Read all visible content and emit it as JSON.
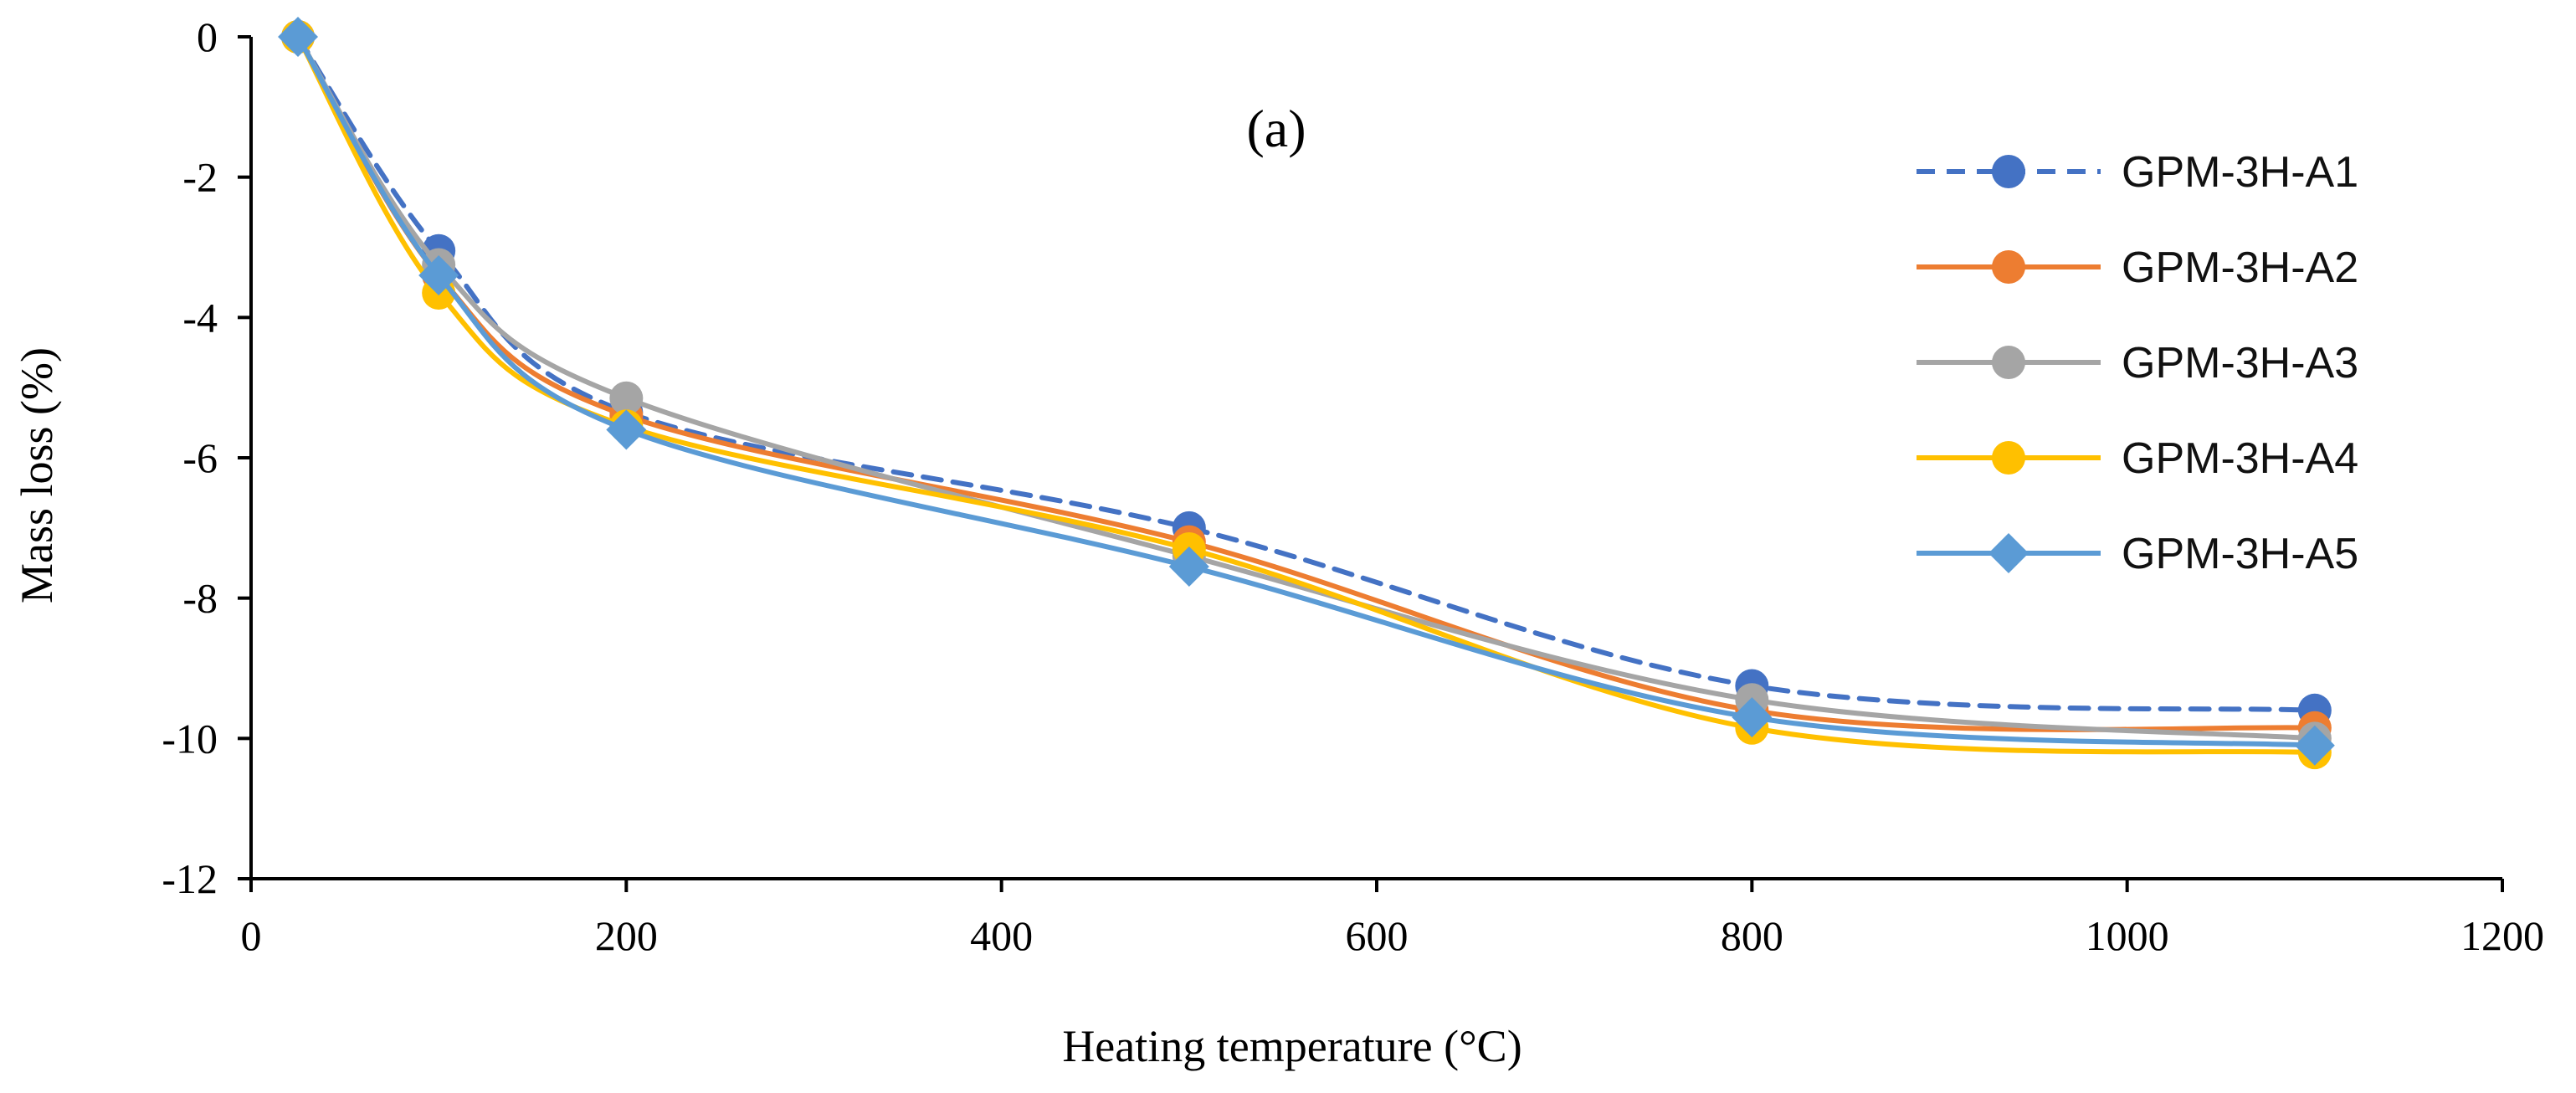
{
  "chart_data": {
    "type": "line",
    "annotation": "(a)",
    "xlabel": "Heating temperature (°C)",
    "ylabel": "Mass loss (%)",
    "xlim": [
      0,
      1200
    ],
    "ylim": [
      -12,
      0
    ],
    "xticks": [
      0,
      200,
      400,
      600,
      800,
      1000,
      1200
    ],
    "yticks": [
      0,
      -2,
      -4,
      -6,
      -8,
      -10,
      -12
    ],
    "grid": false,
    "legend_position": "right",
    "x": [
      25,
      100,
      200,
      500,
      800,
      1100
    ],
    "series": [
      {
        "name": "GPM-3H-A1",
        "color": "#4472C4",
        "dash": true,
        "marker": "circle",
        "values": [
          0,
          -3.05,
          -5.35,
          -7.0,
          -9.25,
          -9.6
        ]
      },
      {
        "name": "GPM-3H-A2",
        "color": "#ED7D31",
        "dash": false,
        "marker": "circle",
        "values": [
          0,
          -3.4,
          -5.4,
          -7.2,
          -9.6,
          -9.85
        ]
      },
      {
        "name": "GPM-3H-A3",
        "color": "#A5A5A5",
        "dash": false,
        "marker": "circle",
        "values": [
          0,
          -3.25,
          -5.15,
          -7.4,
          -9.45,
          -10.0
        ]
      },
      {
        "name": "GPM-3H-A4",
        "color": "#FFC000",
        "dash": false,
        "marker": "circle",
        "values": [
          0,
          -3.65,
          -5.55,
          -7.3,
          -9.85,
          -10.2
        ]
      },
      {
        "name": "GPM-3H-A5",
        "color": "#5B9BD5",
        "dash": false,
        "marker": "diamond",
        "values": [
          0,
          -3.4,
          -5.6,
          -7.55,
          -9.7,
          -10.1
        ]
      }
    ]
  }
}
